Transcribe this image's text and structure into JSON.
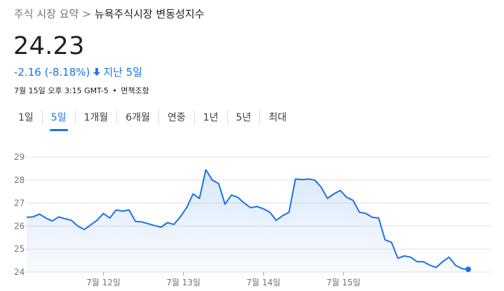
{
  "breadcrumb": {
    "parent": "주식 시장 요약",
    "separator": ">",
    "current": "뉴욕주식시장 변동성지수"
  },
  "quote": {
    "price": "24.23",
    "change": "-2.16 (-8.18%)",
    "period": "지난 5일",
    "timestamp": "7월 15일 오후 3:15 GMT-5",
    "dot": "•",
    "disclaimer": "면책조항"
  },
  "tabs": [
    {
      "label": "1일"
    },
    {
      "label": "5일"
    },
    {
      "label": "1개월"
    },
    {
      "label": "6개월"
    },
    {
      "label": "연중"
    },
    {
      "label": "1년"
    },
    {
      "label": "5년"
    },
    {
      "label": "최대"
    }
  ],
  "active_tab": 1,
  "colors": {
    "accent": "#1a73e8",
    "line": "#1a73e8",
    "fill": "#e8f0fe",
    "grid": "#e0e0e0"
  },
  "chart_data": {
    "type": "area",
    "ylim": [
      24,
      29
    ],
    "yticks": [
      24,
      25,
      26,
      27,
      28,
      29
    ],
    "xticks": [
      {
        "label": "7월 12일",
        "index": 12
      },
      {
        "label": "7월 13일",
        "index": 24.5
      },
      {
        "label": "7월 14일",
        "index": 37
      },
      {
        "label": "7월 15일",
        "index": 49.5
      }
    ],
    "values": [
      26.38,
      26.4,
      26.52,
      26.35,
      26.22,
      26.4,
      26.32,
      26.25,
      26.0,
      25.85,
      26.05,
      26.25,
      26.55,
      26.35,
      26.7,
      26.65,
      26.7,
      26.2,
      26.18,
      26.1,
      26.02,
      25.95,
      26.15,
      26.07,
      26.4,
      26.8,
      27.4,
      27.2,
      28.45,
      28.0,
      27.85,
      26.95,
      27.35,
      27.25,
      27.0,
      26.8,
      26.85,
      26.75,
      26.6,
      26.25,
      26.45,
      26.6,
      28.05,
      28.02,
      28.05,
      28.0,
      27.7,
      27.2,
      27.4,
      27.55,
      27.25,
      27.12,
      26.6,
      26.55,
      26.38,
      26.35,
      25.4,
      25.3,
      24.6,
      24.7,
      24.65,
      24.45,
      24.45,
      24.3,
      24.2,
      24.45,
      24.65,
      24.3,
      24.15,
      24.12
    ]
  }
}
